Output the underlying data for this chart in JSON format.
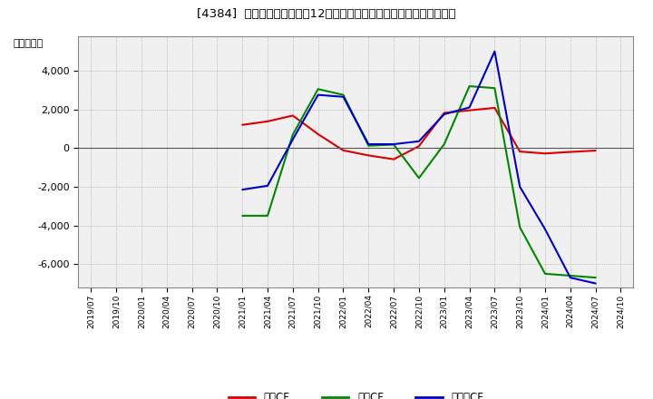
{
  "title": "[4384]  キャッシュフローの12か月移動合計の対前年同期増減額の推移",
  "ylabel": "（百万円）",
  "background_color": "#ffffff",
  "plot_bg_color": "#f0f0f0",
  "grid_color": "#999999",
  "ylim": [
    -7200,
    5800
  ],
  "yticks": [
    -6000,
    -4000,
    -2000,
    0,
    2000,
    4000
  ],
  "x_labels": [
    "2019/07",
    "2019/10",
    "2020/01",
    "2020/04",
    "2020/07",
    "2020/10",
    "2021/01",
    "2021/04",
    "2021/07",
    "2021/10",
    "2022/01",
    "2022/04",
    "2022/07",
    "2022/10",
    "2023/01",
    "2023/04",
    "2023/07",
    "2023/10",
    "2024/01",
    "2024/04",
    "2024/07",
    "2024/10"
  ],
  "series": {
    "営業CF": {
      "color": "#dd0000",
      "data_x": [
        "2021/01",
        "2021/04",
        "2021/07",
        "2021/10",
        "2022/01",
        "2022/04",
        "2022/07",
        "2022/10",
        "2023/01",
        "2023/04",
        "2023/07",
        "2023/10",
        "2024/01",
        "2024/04",
        "2024/07"
      ],
      "data_y": [
        1200,
        1380,
        1680,
        720,
        -120,
        -380,
        -580,
        100,
        1820,
        1950,
        2080,
        -180,
        -280,
        -200,
        -130
      ]
    },
    "投資CF": {
      "color": "#008800",
      "data_x": [
        "2021/01",
        "2021/04",
        "2021/07",
        "2021/10",
        "2022/01",
        "2022/04",
        "2022/07",
        "2022/10",
        "2023/01",
        "2023/04",
        "2023/07",
        "2023/10",
        "2024/01",
        "2024/04",
        "2024/07"
      ],
      "data_y": [
        -3500,
        -3500,
        700,
        3050,
        2750,
        120,
        180,
        -1550,
        200,
        3200,
        3100,
        -4100,
        -6500,
        -6600,
        -6700
      ]
    },
    "フリーCF": {
      "color": "#0000cc",
      "data_x": [
        "2021/01",
        "2021/04",
        "2021/07",
        "2021/10",
        "2022/01",
        "2022/04",
        "2022/07",
        "2022/10",
        "2023/01",
        "2023/04",
        "2023/07",
        "2023/10",
        "2024/01",
        "2024/04",
        "2024/07"
      ],
      "data_y": [
        -2150,
        -1950,
        450,
        2750,
        2650,
        200,
        200,
        350,
        1750,
        2100,
        5000,
        -2000,
        -4200,
        -6700,
        -7000
      ]
    }
  },
  "legend": {
    "entries": [
      "営業CF",
      "投資CF",
      "フリーCF"
    ],
    "colors": [
      "#dd0000",
      "#008800",
      "#0000cc"
    ]
  }
}
